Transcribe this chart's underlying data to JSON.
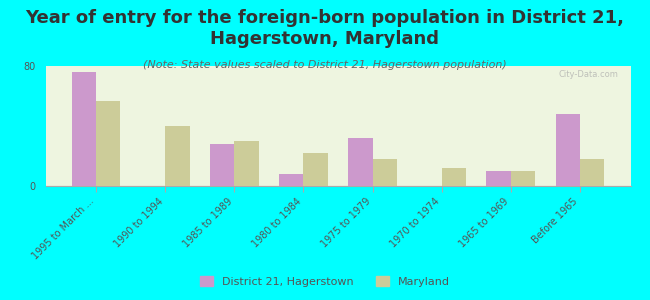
{
  "title": "Year of entry for the foreign-born population in District 21,\nHagerstown, Maryland",
  "subtitle": "(Note: State values scaled to District 21, Hagerstown population)",
  "categories": [
    "1995 to March ...",
    "1990 to 1994",
    "1985 to 1989",
    "1980 to 1984",
    "1975 to 1979",
    "1970 to 1974",
    "1965 to 1969",
    "Before 1965"
  ],
  "district_values": [
    76,
    0,
    28,
    8,
    32,
    0,
    10,
    48
  ],
  "maryland_values": [
    57,
    40,
    30,
    22,
    18,
    12,
    10,
    18
  ],
  "district_color": "#cc99cc",
  "maryland_color": "#cccc99",
  "background_color": "#00ffff",
  "plot_bg_start": "#f5f5dc",
  "plot_bg_end": "#e8f5e8",
  "ylim": [
    0,
    80
  ],
  "yticks": [
    0,
    80
  ],
  "bar_width": 0.35,
  "title_fontsize": 13,
  "subtitle_fontsize": 8,
  "tick_fontsize": 7,
  "legend_label_district": "District 21, Hagerstown",
  "legend_label_maryland": "Maryland",
  "watermark": "City-Data.com"
}
